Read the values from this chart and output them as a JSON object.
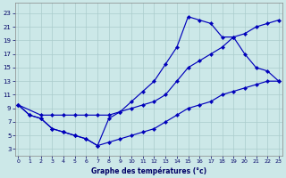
{
  "bg_color": "#cce8e8",
  "grid_color": "#aacccc",
  "line_color": "#0000bb",
  "xlabel": "Graphe des températures (°c)",
  "yticks": [
    3,
    5,
    7,
    9,
    11,
    13,
    15,
    17,
    19,
    21,
    23
  ],
  "xticks": [
    0,
    1,
    2,
    3,
    4,
    5,
    6,
    7,
    8,
    9,
    10,
    11,
    12,
    13,
    14,
    15,
    16,
    17,
    18,
    19,
    20,
    21,
    22,
    23
  ],
  "ylim": [
    2.0,
    24.5
  ],
  "xlim": [
    -0.3,
    23.3
  ],
  "curve_max_x": [
    0,
    1,
    2,
    3,
    4,
    5,
    6,
    7,
    8,
    9,
    10,
    11,
    12,
    13,
    14,
    15,
    16,
    17,
    18,
    19,
    20,
    21,
    22,
    23
  ],
  "curve_max_y": [
    9.5,
    8.0,
    7.5,
    6.0,
    5.5,
    5.0,
    4.5,
    3.5,
    7.5,
    8.5,
    10.0,
    11.5,
    13.0,
    15.5,
    18.0,
    22.5,
    22.0,
    21.5,
    19.5,
    19.5,
    17.0,
    15.0,
    14.5,
    13.0
  ],
  "curve_mid_x": [
    0,
    2,
    3,
    4,
    5,
    6,
    7,
    8,
    9,
    10,
    11,
    12,
    13,
    14,
    15,
    16,
    17,
    18,
    19,
    20,
    21,
    22,
    23
  ],
  "curve_mid_y": [
    9.5,
    8.0,
    8.0,
    8.0,
    8.0,
    8.0,
    8.0,
    8.0,
    8.5,
    9.0,
    9.5,
    10.0,
    11.0,
    13.0,
    15.0,
    16.0,
    17.0,
    18.0,
    19.5,
    20.0,
    21.0,
    21.5,
    22.0
  ],
  "curve_min_x": [
    0,
    1,
    2,
    3,
    4,
    5,
    6,
    7,
    8,
    9,
    10,
    11,
    12,
    13,
    14,
    15,
    16,
    17,
    18,
    19,
    20,
    21,
    22,
    23
  ],
  "curve_min_y": [
    9.5,
    8.0,
    7.5,
    6.0,
    5.5,
    5.0,
    4.5,
    3.5,
    4.0,
    4.5,
    5.0,
    5.5,
    6.0,
    7.0,
    8.0,
    9.0,
    9.5,
    10.0,
    11.0,
    11.5,
    12.0,
    12.5,
    13.0,
    13.0
  ]
}
